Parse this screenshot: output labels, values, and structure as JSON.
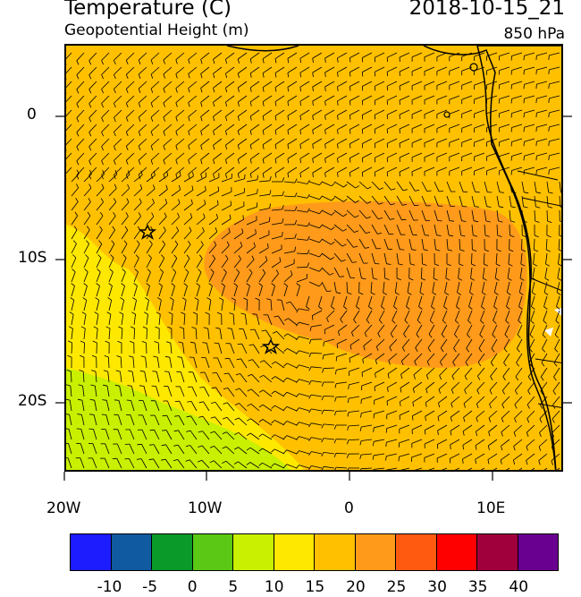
{
  "header": {
    "title": "Temperature (C)",
    "subtitle": "Geopotential Height (m)",
    "datetime": "2018-10-15_21",
    "level": "850 hPa"
  },
  "map": {
    "lat_labels": [
      "0",
      "10S",
      "20S"
    ],
    "lon_labels": [
      "20W",
      "10W",
      "0",
      "10E"
    ],
    "colors": {
      "background_field": "#ffc000",
      "warm_core": "#ff9a1a",
      "cool_tongue": "#ffe800",
      "coldest": "#d4f000",
      "land": "#ffffff"
    },
    "markers": [
      {
        "name": "station-star-north",
        "lon": -14.3,
        "lat": -8.0
      },
      {
        "name": "station-star-south",
        "lon": -5.8,
        "lat": -16.0
      }
    ]
  },
  "colorbar": {
    "labels": [
      "-10",
      "-5",
      "0",
      "5",
      "10",
      "15",
      "20",
      "25",
      "30",
      "35",
      "40"
    ],
    "colors": [
      "#1c1cff",
      "#0f5aa0",
      "#0a9a2a",
      "#5ac814",
      "#c8f000",
      "#ffe800",
      "#ffc000",
      "#ff9a1a",
      "#ff5a0f",
      "#ff0000",
      "#a0003c",
      "#6a0090"
    ]
  }
}
